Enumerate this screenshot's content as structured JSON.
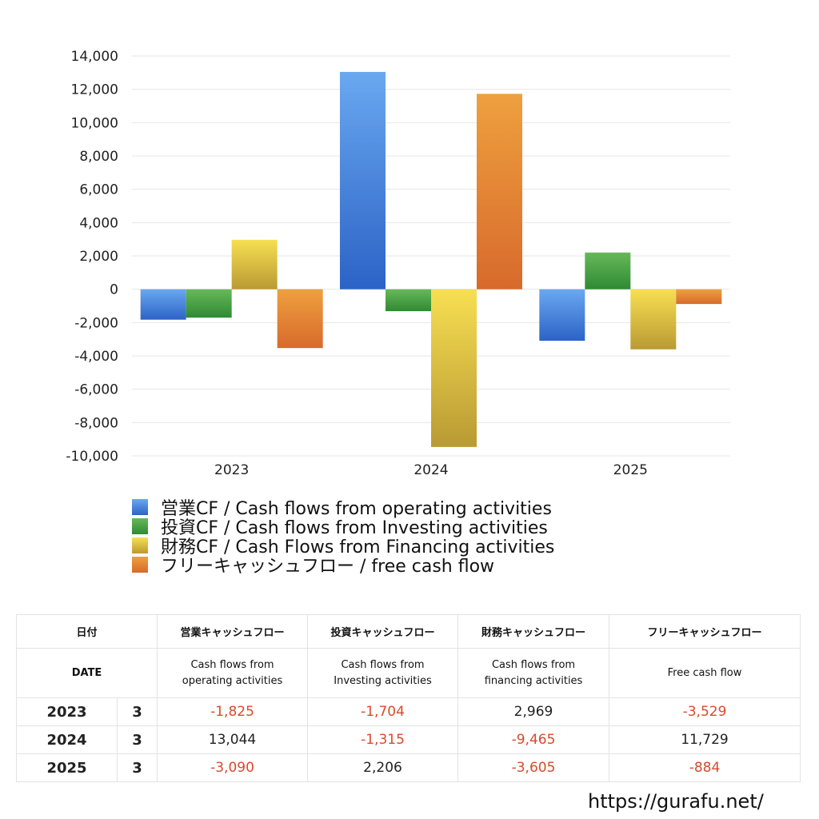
{
  "chart_data": {
    "type": "bar",
    "categories": [
      "2023",
      "2024",
      "2025"
    ],
    "series": [
      {
        "name": "営業CF / Cash flows from operating activities",
        "values": [
          -1825,
          13044,
          -3090
        ],
        "color_top": "#6aa8f0",
        "color_bottom": "#2b63c6"
      },
      {
        "name": "投資CF / Cash flows from Investing activities",
        "values": [
          -1704,
          -1315,
          2206
        ],
        "color_top": "#68b85a",
        "color_bottom": "#2e8a33"
      },
      {
        "name": "財務CF / Cash Flows from Financing activities",
        "values": [
          2969,
          -9465,
          -3605
        ],
        "color_top": "#f7df52",
        "color_bottom": "#b99a33"
      },
      {
        "name": "フリーキャッシュフロー / free cash flow",
        "values": [
          -3529,
          11729,
          -884
        ],
        "color_top": "#eea03e",
        "color_bottom": "#d86a2c"
      }
    ],
    "yticks": [
      "14,000",
      "12,000",
      "10,000",
      "8,000",
      "6,000",
      "4,000",
      "2,000",
      "0",
      "-2,000",
      "-4,000",
      "-6,000",
      "-8,000",
      "-10,000"
    ],
    "ylim": [
      -10000,
      14000
    ],
    "grid": true,
    "legend_position": "bottom"
  },
  "table": {
    "header_jp": [
      "日付",
      "営業キャッシュフロー",
      "投資キャッシュフロー",
      "財務キャッシュフロー",
      "フリーキャッシュフロー"
    ],
    "header_en": {
      "date": "DATE",
      "op": [
        "Cash flows from",
        "operating activities"
      ],
      "inv": [
        "Cash flows from",
        "Investing activities"
      ],
      "fin": [
        "Cash flows from",
        "financing activities"
      ],
      "free": "Free cash flow"
    },
    "rows": [
      {
        "year": "2023",
        "month": "3",
        "values": [
          "-1,825",
          "-1,704",
          "2,969",
          "-3,529"
        ]
      },
      {
        "year": "2024",
        "month": "3",
        "values": [
          "13,044",
          "-1,315",
          "-9,465",
          "11,729"
        ]
      },
      {
        "year": "2025",
        "month": "3",
        "values": [
          "-3,090",
          "2,206",
          "-3,605",
          "-884"
        ]
      }
    ]
  },
  "site_url": "https://gurafu.net/"
}
